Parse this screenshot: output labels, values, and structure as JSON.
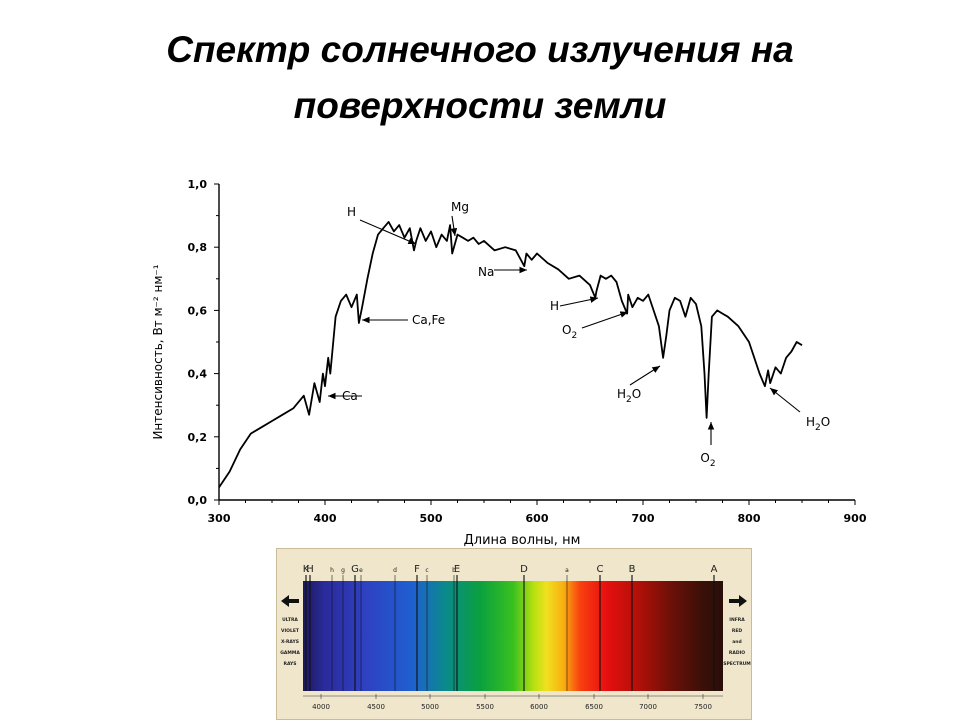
{
  "slide": {
    "title_line1": "Спектр солнечного излучения на",
    "title_line2": "поверхности земли"
  },
  "chart_data": {
    "type": "line",
    "xlabel": "Длина волны, нм",
    "ylabel": "Интенсивность, Вт м⁻² нм⁻¹",
    "xlim": [
      300,
      900
    ],
    "ylim": [
      0.0,
      1.0
    ],
    "xticks": [
      "300",
      "400",
      "500",
      "600",
      "700",
      "800",
      "900"
    ],
    "yticks": [
      "0,0",
      "0,2",
      "0,4",
      "0,6",
      "0,8",
      "1,0"
    ],
    "grid": false,
    "series": [
      {
        "x": [
          300,
          310,
          320,
          330,
          340,
          350,
          360,
          370,
          380,
          385,
          390,
          395,
          398,
          400,
          403,
          405,
          410,
          415,
          420,
          425,
          430,
          432,
          435,
          440,
          445,
          450,
          455,
          460,
          465,
          470,
          475,
          480,
          484,
          486,
          490,
          495,
          500,
          505,
          510,
          515,
          518,
          520,
          525,
          530,
          535,
          540,
          545,
          550,
          560,
          570,
          580,
          588,
          590,
          595,
          600,
          610,
          620,
          630,
          640,
          650,
          655,
          656,
          660,
          665,
          670,
          675,
          680,
          685,
          686,
          690,
          695,
          700,
          705,
          710,
          715,
          719,
          722,
          725,
          730,
          735,
          740,
          745,
          750,
          755,
          758,
          760,
          762,
          765,
          770,
          775,
          780,
          790,
          800,
          805,
          810,
          815,
          818,
          820,
          825,
          830,
          835,
          840,
          845,
          850
        ],
        "y": [
          0.04,
          0.09,
          0.16,
          0.21,
          0.23,
          0.25,
          0.27,
          0.29,
          0.33,
          0.27,
          0.37,
          0.31,
          0.4,
          0.36,
          0.45,
          0.4,
          0.58,
          0.63,
          0.65,
          0.61,
          0.65,
          0.56,
          0.61,
          0.7,
          0.78,
          0.84,
          0.86,
          0.88,
          0.85,
          0.87,
          0.83,
          0.86,
          0.79,
          0.82,
          0.86,
          0.82,
          0.85,
          0.8,
          0.84,
          0.82,
          0.87,
          0.78,
          0.84,
          0.83,
          0.82,
          0.83,
          0.81,
          0.82,
          0.79,
          0.8,
          0.79,
          0.74,
          0.78,
          0.76,
          0.78,
          0.75,
          0.73,
          0.7,
          0.71,
          0.68,
          0.64,
          0.66,
          0.71,
          0.7,
          0.71,
          0.69,
          0.63,
          0.59,
          0.65,
          0.61,
          0.64,
          0.63,
          0.65,
          0.6,
          0.55,
          0.45,
          0.52,
          0.6,
          0.64,
          0.63,
          0.58,
          0.64,
          0.62,
          0.55,
          0.4,
          0.26,
          0.4,
          0.58,
          0.6,
          0.59,
          0.58,
          0.55,
          0.5,
          0.45,
          0.4,
          0.36,
          0.41,
          0.37,
          0.42,
          0.4,
          0.45,
          0.47,
          0.5,
          0.49
        ]
      }
    ],
    "annotations": [
      {
        "label": "H",
        "x": 486,
        "y": 0.79
      },
      {
        "label": "Mg",
        "x": 518,
        "y": 0.8
      },
      {
        "label": "Na",
        "x": 589,
        "y": 0.74
      },
      {
        "label": "H",
        "x": 656,
        "y": 0.64
      },
      {
        "label": "Ca,Fe",
        "x": 431,
        "y": 0.56
      },
      {
        "label": "Ca",
        "x": 397,
        "y": 0.31
      },
      {
        "label": "O2",
        "x": 687,
        "y": 0.59
      },
      {
        "label": "H2O",
        "x": 719,
        "y": 0.44
      },
      {
        "label": "O2",
        "x": 761,
        "y": 0.26
      },
      {
        "label": "H2O",
        "x": 818,
        "y": 0.36
      }
    ]
  },
  "spectrum_strip": {
    "top_lines": [
      "K",
      "H",
      "h",
      "g",
      "G",
      "e",
      "d",
      "F",
      "c",
      "E",
      "b",
      "D",
      "a",
      "C",
      "B",
      "A"
    ],
    "left_text": [
      "ULTRA",
      "VIOLET",
      "X-RAYS",
      "GAMMA",
      "RAYS"
    ],
    "right_text": [
      "INFRA",
      "RED",
      "and",
      "RADIO",
      "SPECTRUM"
    ],
    "scale_labels": [
      "4000",
      "4500",
      "5000",
      "5500",
      "6000",
      "6500",
      "7000",
      "7500"
    ]
  }
}
